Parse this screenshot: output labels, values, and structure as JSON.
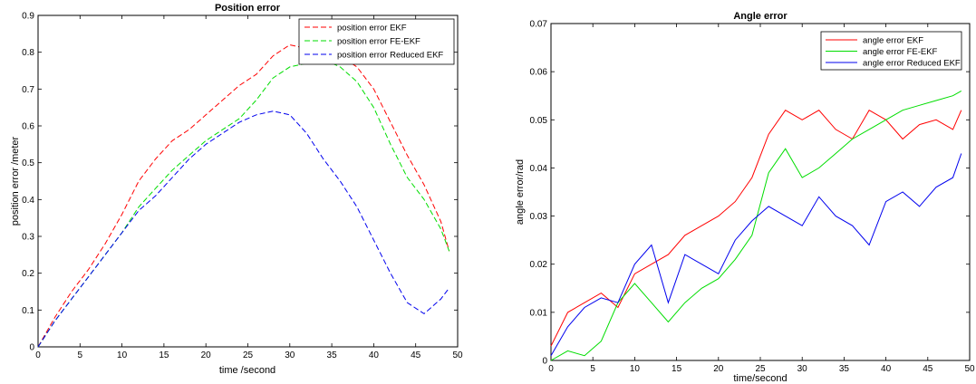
{
  "chart_data": [
    {
      "type": "line",
      "title": "Position error",
      "xlabel": "time /second",
      "ylabel": "position error /meter",
      "xlim": [
        0,
        50
      ],
      "ylim": [
        0,
        0.9
      ],
      "xticks": [
        "0",
        "5",
        "10",
        "15",
        "20",
        "25",
        "30",
        "35",
        "40",
        "45",
        "50"
      ],
      "yticks": [
        "0",
        "0.1",
        "0.2",
        "0.3",
        "0.4",
        "0.5",
        "0.6",
        "0.7",
        "0.8",
        "0.9"
      ],
      "line_style": "dashed",
      "legend_position": "top-right",
      "x": [
        0,
        2,
        4,
        6,
        8,
        10,
        12,
        14,
        16,
        18,
        20,
        22,
        24,
        26,
        28,
        30,
        32,
        34,
        36,
        38,
        40,
        42,
        44,
        46,
        48,
        49
      ],
      "series": [
        {
          "name": "position error EKF",
          "color": "#ff0000",
          "values": [
            0,
            0.08,
            0.15,
            0.21,
            0.28,
            0.36,
            0.45,
            0.51,
            0.56,
            0.59,
            0.63,
            0.67,
            0.71,
            0.74,
            0.79,
            0.82,
            0.81,
            0.8,
            0.79,
            0.76,
            0.7,
            0.61,
            0.52,
            0.44,
            0.34,
            0.26
          ]
        },
        {
          "name": "position error FE-EKF",
          "color": "#00dd00",
          "values": [
            0,
            0.07,
            0.13,
            0.19,
            0.25,
            0.31,
            0.38,
            0.43,
            0.48,
            0.52,
            0.56,
            0.59,
            0.62,
            0.67,
            0.73,
            0.76,
            0.77,
            0.78,
            0.76,
            0.72,
            0.65,
            0.55,
            0.46,
            0.4,
            0.32,
            0.26
          ]
        },
        {
          "name": "position error Reduced EKF",
          "color": "#0000ee",
          "values": [
            0,
            0.07,
            0.13,
            0.19,
            0.25,
            0.31,
            0.37,
            0.41,
            0.46,
            0.51,
            0.55,
            0.58,
            0.61,
            0.63,
            0.64,
            0.63,
            0.58,
            0.51,
            0.45,
            0.38,
            0.29,
            0.2,
            0.12,
            0.09,
            0.13,
            0.16
          ]
        }
      ]
    },
    {
      "type": "line",
      "title": "Angle error",
      "xlabel": "time/second",
      "ylabel": "angle error/rad",
      "xlim": [
        0,
        50
      ],
      "ylim": [
        0,
        0.07
      ],
      "xticks": [
        "0",
        "5",
        "10",
        "15",
        "20",
        "25",
        "30",
        "35",
        "40",
        "45",
        "50"
      ],
      "yticks": [
        "0",
        "0.01",
        "0.02",
        "0.03",
        "0.04",
        "0.05",
        "0.06",
        "0.07"
      ],
      "line_style": "solid",
      "legend_position": "top-right",
      "x": [
        0,
        2,
        4,
        6,
        8,
        10,
        12,
        14,
        16,
        18,
        20,
        22,
        24,
        26,
        28,
        30,
        32,
        34,
        36,
        38,
        40,
        42,
        44,
        46,
        48,
        49
      ],
      "series": [
        {
          "name": "angle error EKF",
          "color": "#ff0000",
          "values": [
            0.003,
            0.01,
            0.012,
            0.014,
            0.011,
            0.018,
            0.02,
            0.022,
            0.026,
            0.028,
            0.03,
            0.033,
            0.038,
            0.047,
            0.052,
            0.05,
            0.052,
            0.048,
            0.046,
            0.052,
            0.05,
            0.046,
            0.049,
            0.05,
            0.048,
            0.052
          ]
        },
        {
          "name": "angle error FE-EKF",
          "color": "#00dd00",
          "values": [
            0,
            0.002,
            0.001,
            0.004,
            0.012,
            0.016,
            0.012,
            0.008,
            0.012,
            0.015,
            0.017,
            0.021,
            0.026,
            0.039,
            0.044,
            0.038,
            0.04,
            0.043,
            0.046,
            0.048,
            0.05,
            0.052,
            0.053,
            0.054,
            0.055,
            0.056
          ]
        },
        {
          "name": "angle error Reduced EKF",
          "color": "#0000ee",
          "values": [
            0.001,
            0.007,
            0.011,
            0.013,
            0.012,
            0.02,
            0.024,
            0.012,
            0.022,
            0.02,
            0.018,
            0.025,
            0.029,
            0.032,
            0.03,
            0.028,
            0.034,
            0.03,
            0.028,
            0.024,
            0.033,
            0.035,
            0.032,
            0.036,
            0.038,
            0.043
          ]
        }
      ]
    }
  ]
}
